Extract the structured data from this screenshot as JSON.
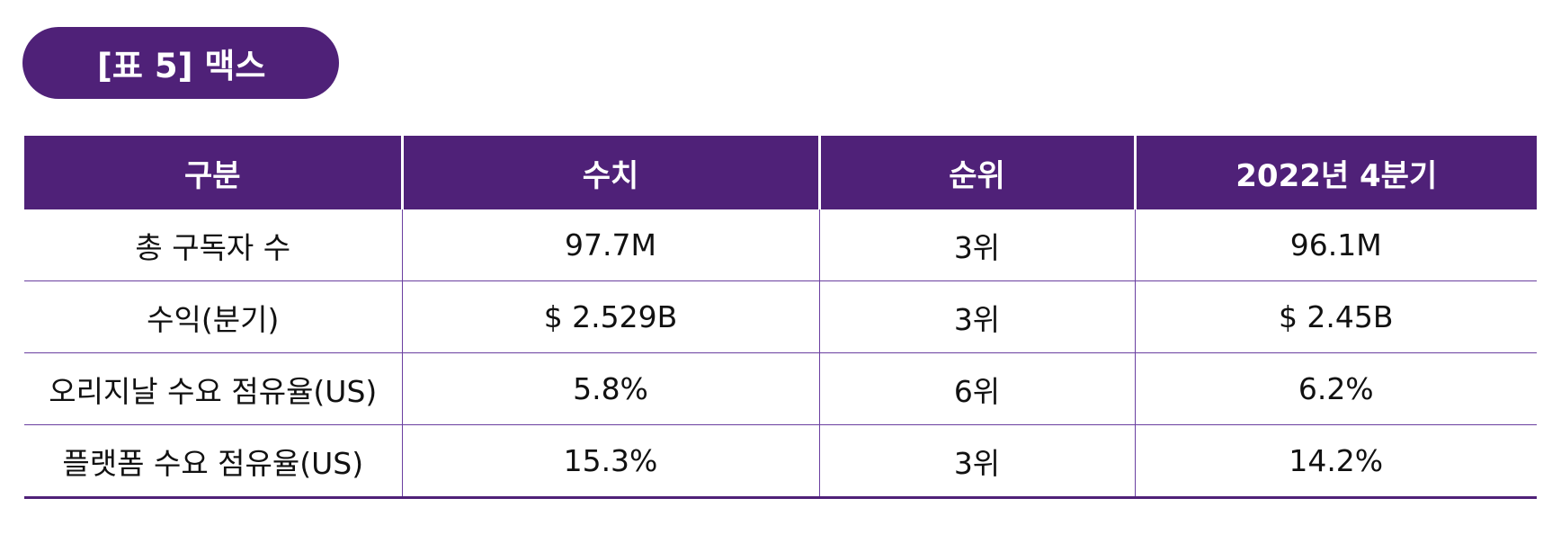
{
  "title": "[표 5] 맥스",
  "table": {
    "headers": [
      "구분",
      "수치",
      "순위",
      "2022년 4분기"
    ],
    "rows": [
      [
        "총 구독자 수",
        "97.7M",
        "3위",
        "96.1M"
      ],
      [
        "수익(분기)",
        "$ 2.529B",
        "3위",
        "$ 2.45B"
      ],
      [
        "오리지날 수요 점유율(US)",
        "5.8%",
        "6위",
        "6.2%"
      ],
      [
        "플랫폼 수요 점유율(US)",
        "15.3%",
        "3위",
        "14.2%"
      ]
    ]
  },
  "colors": {
    "accent": "#4f2178",
    "row_divider": "#6a3fa0"
  }
}
